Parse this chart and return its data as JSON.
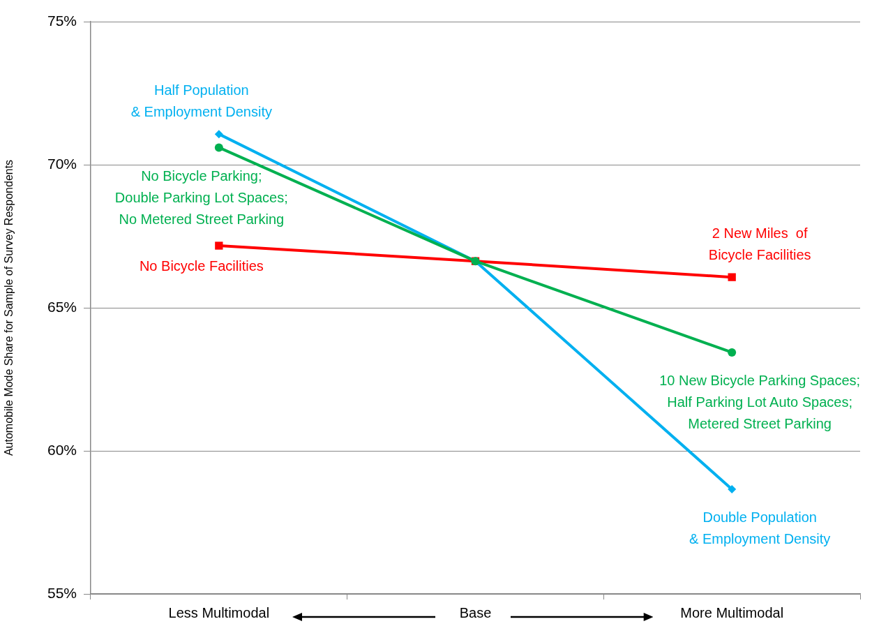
{
  "chart_data": {
    "type": "line",
    "ylabel": "Automobile Mode Share for Sample of Survey Respondents",
    "categories": [
      "Less Multimodal",
      "Base",
      "More Multimodal"
    ],
    "series": [
      {
        "color": "#00b050",
        "marker": "circle",
        "values": [
          70.6,
          66.63,
          63.44
        ]
      },
      {
        "color": "#00b0f0",
        "marker": "diamond",
        "values": [
          71.07,
          66.63,
          58.66
        ]
      },
      {
        "color": "#ff0000",
        "marker": "square",
        "values": [
          67.17,
          66.63,
          66.07
        ]
      }
    ],
    "ylim": [
      55,
      75
    ],
    "yticks": [
      {
        "value": 55,
        "label": "55%"
      },
      {
        "value": 60,
        "label": "60%"
      },
      {
        "value": 65,
        "label": "65%"
      },
      {
        "value": 70,
        "label": "70%"
      },
      {
        "value": 75,
        "label": "75%"
      }
    ],
    "grid": "y",
    "legend": false,
    "line_style": "solid",
    "annotations": [
      {
        "text": "Half Population\n& Employment Density",
        "x": "Less Multimodal",
        "y": 71.07
      },
      {
        "text": "No Bicycle Parking;\nDouble Parking Lot Spaces;\nNo Metered Street Parking",
        "x": "Less Multimodal",
        "y": 70.6
      },
      {
        "text": "No Bicycle Facilities",
        "x": "Less Multimodal",
        "y": 67.17
      },
      {
        "text": "2 New Miles  of\nBicycle Facilities",
        "x": "More Multimodal",
        "y": 66.07
      },
      {
        "text": "10 New Bicycle Parking Spaces;\nHalf Parking Lot Auto Spaces;\nMetered Street Parking",
        "x": "More Multimodal",
        "y": 63.44
      },
      {
        "text": "Double Population\n& Employment Density",
        "x": "More Multimodal",
        "y": 58.66
      }
    ]
  }
}
